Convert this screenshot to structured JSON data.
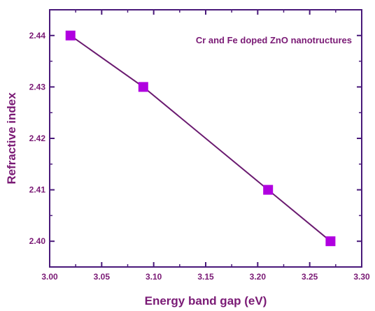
{
  "colors": {
    "axis": "#4a1a7a",
    "text": "#7a1a75",
    "line": "#6a1a70",
    "marker": "#b000e0"
  },
  "chart_data": {
    "type": "line",
    "title": "",
    "xlabel": "Energy band gap (eV)",
    "ylabel": "Refractive index",
    "annotation": "Cr and Fe doped ZnO nanotructures",
    "xlim": [
      3.0,
      3.3
    ],
    "ylim": [
      2.395,
      2.445
    ],
    "xticks": [
      "3.00",
      "3.05",
      "3.10",
      "3.15",
      "3.20",
      "3.25",
      "3.30"
    ],
    "yticks": [
      "2.40",
      "2.41",
      "2.42",
      "2.43",
      "2.44"
    ],
    "grid": false,
    "marker": "square",
    "series": [
      {
        "x": [
          3.02,
          3.09,
          3.21,
          3.27
        ],
        "y": [
          2.44,
          2.43,
          2.41,
          2.4
        ]
      }
    ]
  }
}
